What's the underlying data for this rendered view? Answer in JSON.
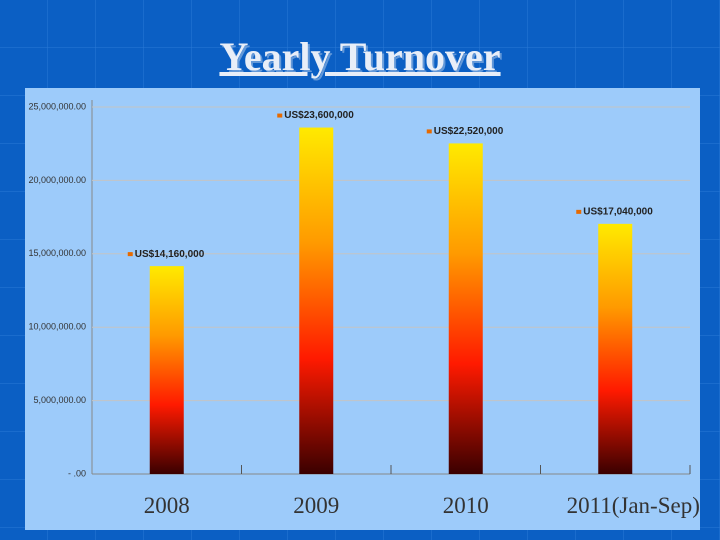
{
  "chart_data": {
    "type": "bar",
    "title": "Yearly Turnover",
    "categories": [
      "2008",
      "2009",
      "2010",
      "2011(Jan-Sep)"
    ],
    "values": [
      14160000,
      23600000,
      22520000,
      17040000
    ],
    "value_labels": [
      "US$14,160,000",
      "US$23,600,000",
      "US$22,520,000",
      "US$17,040,000"
    ],
    "gradient": [
      "#ffea00",
      "#ff9a00",
      "#ff1a00",
      "#3a0000"
    ],
    "ylim": [
      0,
      25000000
    ],
    "yticks": [
      {
        "value": 0,
        "label": "- .00"
      },
      {
        "value": 5000000,
        "label": "5,000,000.00"
      },
      {
        "value": 10000000,
        "label": "10,000,000.00"
      },
      {
        "value": 15000000,
        "label": "15,000,000.00"
      },
      {
        "value": 20000000,
        "label": "20,000,000.00"
      },
      {
        "value": 25000000,
        "label": "25,000,000.00"
      }
    ],
    "grid": true
  }
}
